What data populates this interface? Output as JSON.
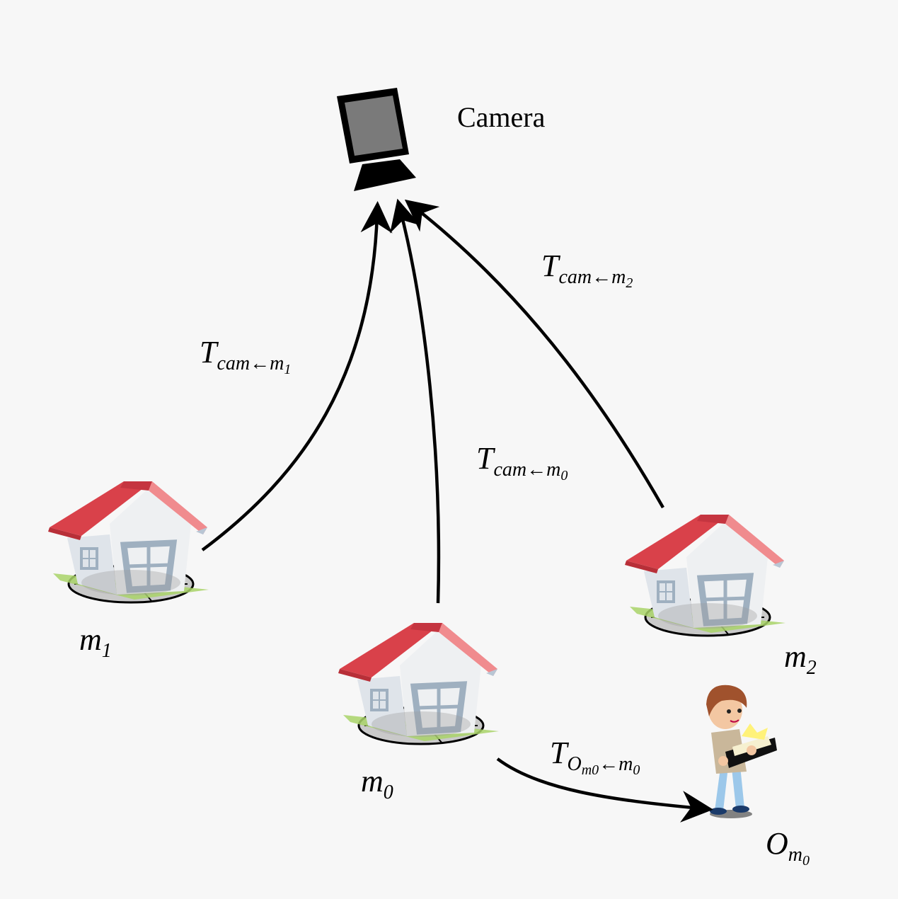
{
  "camera": {
    "label": "Camera",
    "icon": "camera-monitor-icon"
  },
  "markers": [
    {
      "id": "m1",
      "base": "m",
      "sub": "1",
      "icon": "house-marker-icon"
    },
    {
      "id": "m0",
      "base": "m",
      "sub": "0",
      "icon": "house-marker-icon"
    },
    {
      "id": "m2",
      "base": "m",
      "sub": "2",
      "icon": "house-marker-icon"
    }
  ],
  "object": {
    "base": "O",
    "sub": "m",
    "subsub": "0",
    "icon": "person-reading-book-icon"
  },
  "transforms": [
    {
      "id": "t-cam-m1",
      "base": "T",
      "sub": "cam←m",
      "subsub": "1"
    },
    {
      "id": "t-cam-m0",
      "base": "T",
      "sub": "cam←m",
      "subsub": "0"
    },
    {
      "id": "t-cam-m2",
      "base": "T",
      "sub": "cam←m",
      "subsub": "2"
    },
    {
      "id": "t-o-m0",
      "base": "T",
      "sub": "O",
      "subsub": "m0",
      "tail": "←m",
      "tailsub": "0"
    }
  ],
  "colors": {
    "roof": "#d9414a",
    "roof_edge": "#f08b8e",
    "wall": "#eef0f2",
    "window_frame": "#9fb0c0",
    "ground_green": "#a9d468",
    "disk": "#c9c9c9",
    "arrow": "#000000"
  }
}
